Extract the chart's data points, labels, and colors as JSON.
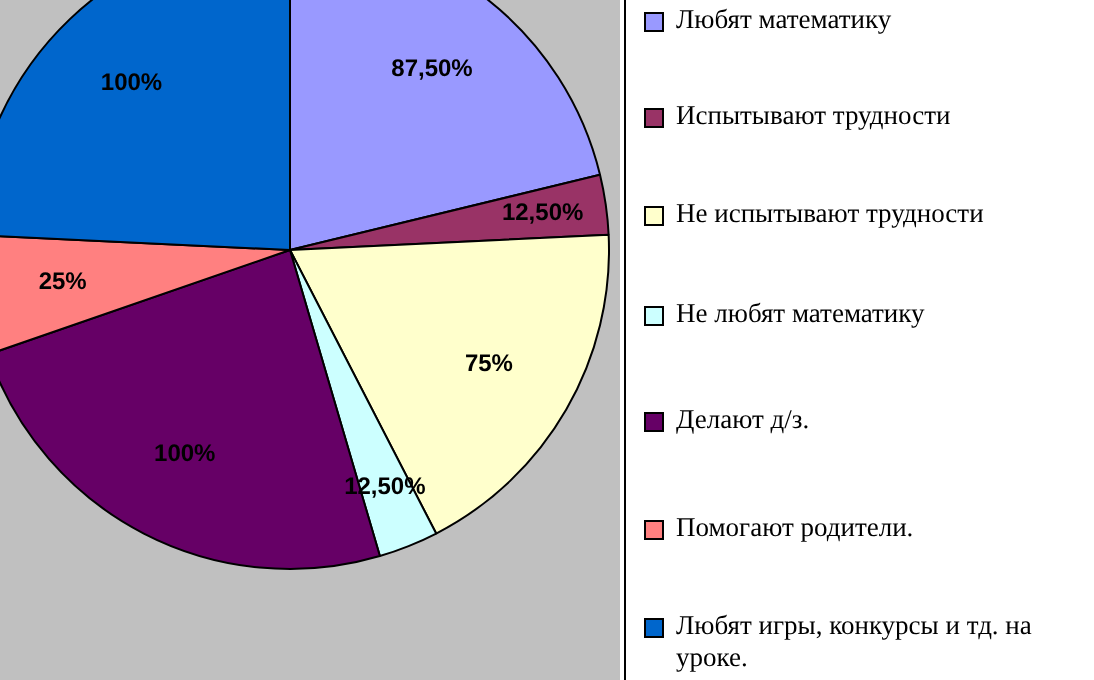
{
  "chart_data": {
    "type": "pie",
    "categories": [
      "Любят математику",
      "Испытывают трудности",
      "Не испытывают трудности",
      "Не любят математику",
      "Делают д/з.",
      "Помогают родители.",
      "Любят игры, конкурсы и тд. на уроке."
    ],
    "values": [
      87.5,
      12.5,
      75,
      12.5,
      100,
      25,
      100
    ],
    "colors": [
      "#9999ff",
      "#993366",
      "#ffffcc",
      "#ccffff",
      "#660066",
      "#ff8080",
      "#0066cc"
    ],
    "value_labels": [
      "87,50%",
      "12,50%",
      "75%",
      "12,50%",
      "100%",
      "25%",
      "100%"
    ],
    "legend": "right"
  }
}
